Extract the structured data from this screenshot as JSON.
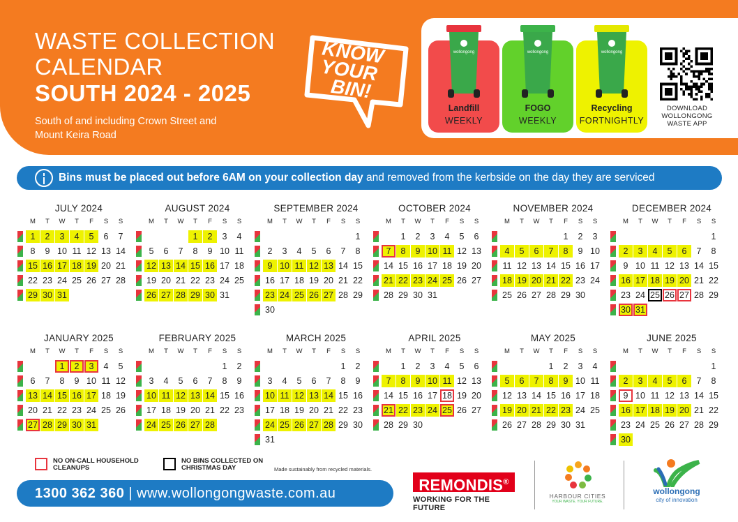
{
  "header": {
    "title_line1": "WASTE COLLECTION",
    "title_line2": "CALENDAR",
    "title_line3": "SOUTH 2024 - 2025",
    "subtitle": "South of and including Crown Street and Mount Keira Road",
    "badge_line1": "KNOW",
    "badge_line2": "YOUR",
    "badge_line3": "BIN!"
  },
  "bins": [
    {
      "name": "Landfill",
      "frequency": "WEEKLY",
      "card_color": "#f24b4b",
      "lid_color": "#e8343d",
      "body_color": "#3aa84a"
    },
    {
      "name": "FOGO",
      "frequency": "WEEKLY",
      "card_color": "#62d12b",
      "lid_color": "#3cb34a",
      "body_color": "#3aa84a"
    },
    {
      "name": "Recycling",
      "frequency": "FORTNIGHTLY",
      "card_color": "#eef200",
      "lid_color": "#e4e800",
      "body_color": "#3aa84a"
    }
  ],
  "bin_logo_text": "wollongong",
  "qr_caption": "DOWNLOAD WOLLONGONG WASTE APP",
  "notice": {
    "bold": "Bins must be placed out before 6AM on your collection day",
    "rest": " and removed from the kerbside on the day they are serviced"
  },
  "weekdays": [
    "M",
    "T",
    "W",
    "T",
    "F",
    "S",
    "S"
  ],
  "months": [
    {
      "name": "JULY 2024",
      "start": 0,
      "days": 31,
      "recycling": [
        1,
        2,
        3,
        4,
        5,
        15,
        16,
        17,
        18,
        19,
        29,
        30,
        31
      ],
      "red": [],
      "black": []
    },
    {
      "name": "AUGUST 2024",
      "start": 3,
      "days": 31,
      "recycling": [
        1,
        2,
        12,
        13,
        14,
        15,
        16,
        26,
        27,
        28,
        29,
        30
      ],
      "red": [],
      "black": []
    },
    {
      "name": "SEPTEMBER 2024",
      "start": 6,
      "days": 30,
      "recycling": [
        9,
        10,
        11,
        12,
        13,
        23,
        24,
        25,
        26,
        27
      ],
      "red": [],
      "black": []
    },
    {
      "name": "OCTOBER 2024",
      "start": 1,
      "days": 31,
      "recycling": [
        7,
        8,
        9,
        10,
        11,
        21,
        22,
        23,
        24,
        25
      ],
      "red": [
        7
      ],
      "black": []
    },
    {
      "name": "NOVEMBER 2024",
      "start": 4,
      "days": 30,
      "recycling": [
        4,
        5,
        6,
        7,
        8,
        18,
        19,
        20,
        21,
        22
      ],
      "red": [],
      "black": []
    },
    {
      "name": "DECEMBER 2024",
      "start": 6,
      "days": 31,
      "recycling": [
        2,
        3,
        4,
        5,
        6,
        16,
        17,
        18,
        19,
        20,
        30,
        31
      ],
      "red": [
        26,
        27,
        30,
        31
      ],
      "black": [
        25
      ]
    },
    {
      "name": "JANUARY 2025",
      "start": 2,
      "days": 31,
      "recycling": [
        1,
        2,
        3,
        13,
        14,
        15,
        16,
        17,
        27,
        28,
        29,
        30,
        31
      ],
      "red": [
        1,
        2,
        3,
        27
      ],
      "black": []
    },
    {
      "name": "FEBRUARY 2025",
      "start": 5,
      "days": 28,
      "recycling": [
        10,
        11,
        12,
        13,
        14,
        24,
        25,
        26,
        27,
        28
      ],
      "red": [],
      "black": []
    },
    {
      "name": "MARCH 2025",
      "start": 5,
      "days": 31,
      "recycling": [
        10,
        11,
        12,
        13,
        14,
        24,
        25,
        26,
        27,
        28
      ],
      "red": [],
      "black": []
    },
    {
      "name": "APRIL 2025",
      "start": 1,
      "days": 30,
      "recycling": [
        7,
        8,
        9,
        10,
        11,
        21,
        22,
        23,
        24,
        25
      ],
      "red": [
        18,
        21,
        25
      ],
      "black": []
    },
    {
      "name": "MAY 2025",
      "start": 3,
      "days": 31,
      "recycling": [
        5,
        6,
        7,
        8,
        9,
        19,
        20,
        21,
        22,
        23
      ],
      "red": [],
      "black": []
    },
    {
      "name": "JUNE 2025",
      "start": 6,
      "days": 30,
      "recycling": [
        2,
        3,
        4,
        5,
        6,
        16,
        17,
        18,
        19,
        20,
        30
      ],
      "red": [
        9
      ],
      "black": []
    }
  ],
  "legend": {
    "red_label": "NO ON-CALL HOUSEHOLD CLEANUPS",
    "black_label": "NO BINS COLLECTED ON CHRISTMAS DAY",
    "made_text": "Made sustainably from recycled materials."
  },
  "footer": {
    "phone": "1300 362 360",
    "separator": "|",
    "website": "www.wollongongwaste.com.au"
  },
  "logos": {
    "remondis": "REMONDIS",
    "remondis_mark": "®",
    "remondis_tagline": "WORKING FOR THE FUTURE",
    "harbour_cities": "HARBOUR CITIES",
    "harbour_cities_tagline": "YOUR WASTE. YOUR FUTURE.",
    "wollongong": "wollongong",
    "wollongong_tagline": "city of innovation"
  }
}
